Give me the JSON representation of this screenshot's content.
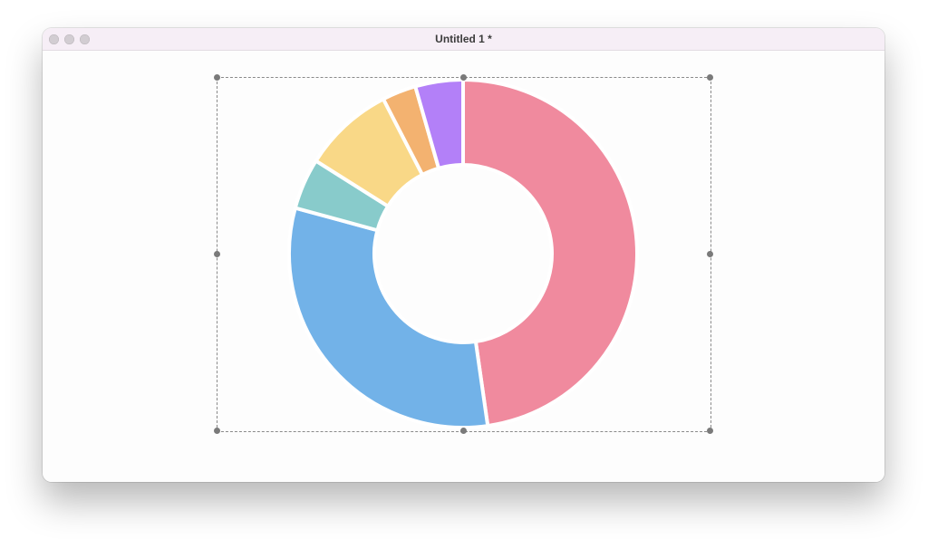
{
  "window": {
    "title": "Untitled 1 *"
  },
  "traffic_lights": [
    "close-button",
    "minimize-button",
    "zoom-button"
  ],
  "chart_data": {
    "type": "pie",
    "style": "donut",
    "slices": [
      {
        "value": 48.5,
        "color": "#f08a9e"
      },
      {
        "value": 32.0,
        "color": "#72b2e8"
      },
      {
        "value": 4.8,
        "color": "#88cbcb"
      },
      {
        "value": 8.6,
        "color": "#f9d887"
      },
      {
        "value": 3.2,
        "color": "#f3b270"
      },
      {
        "value": 4.5,
        "color": "#b380f8"
      }
    ]
  },
  "selection": {
    "visible": true,
    "handle_color": "#7a7a7a"
  }
}
